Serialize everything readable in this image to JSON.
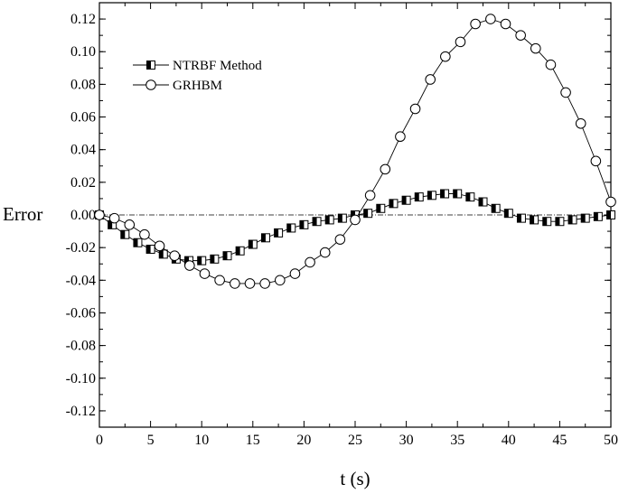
{
  "chart_data": {
    "type": "line",
    "title": "",
    "xlabel": "t (s)",
    "ylabel": "Error",
    "xlim": [
      0,
      50
    ],
    "ylim": [
      -0.13,
      0.13
    ],
    "grid": false,
    "legend_position": "top-left",
    "x_ticks": [
      0,
      5,
      10,
      15,
      20,
      25,
      30,
      35,
      40,
      45,
      50
    ],
    "x_tick_labels": [
      "0",
      "5",
      "10",
      "15",
      "20",
      "25",
      "30",
      "35",
      "40",
      "45",
      "50"
    ],
    "y_ticks": [
      0.12,
      0.1,
      0.08,
      0.06,
      0.04,
      0.02,
      0.0,
      -0.02,
      -0.04,
      -0.06,
      -0.08,
      -0.1,
      -0.12
    ],
    "y_tick_labels": [
      "0.12",
      "0.10",
      "0.08",
      "0.06",
      "0.04",
      "0.02",
      "0.00",
      "-0.02",
      "-0.04",
      "-0.06",
      "-0.08",
      "-0.10",
      "-0.12"
    ],
    "reference_line": {
      "y": 0.0,
      "style": "dash-dot"
    },
    "series": [
      {
        "name": "NTRBF Method",
        "marker": "half-filled-square",
        "color": "#000000",
        "x": [
          0,
          1.25,
          2.5,
          3.75,
          5,
          6.25,
          7.5,
          8.75,
          10,
          11.25,
          12.5,
          13.75,
          15,
          16.25,
          17.5,
          18.75,
          20,
          21.25,
          22.5,
          23.75,
          25,
          26.25,
          27.5,
          28.75,
          30,
          31.25,
          32.5,
          33.75,
          35,
          36.25,
          37.5,
          38.75,
          40,
          41.25,
          42.5,
          43.75,
          45,
          46.25,
          47.5,
          48.75,
          50
        ],
        "y": [
          0.0,
          -0.006,
          -0.012,
          -0.017,
          -0.021,
          -0.024,
          -0.027,
          -0.028,
          -0.028,
          -0.027,
          -0.025,
          -0.022,
          -0.018,
          -0.014,
          -0.011,
          -0.008,
          -0.006,
          -0.004,
          -0.003,
          -0.002,
          0.0,
          0.001,
          0.004,
          0.007,
          0.009,
          0.011,
          0.012,
          0.013,
          0.013,
          0.011,
          0.008,
          0.004,
          0.001,
          -0.002,
          -0.003,
          -0.004,
          -0.004,
          -0.003,
          -0.002,
          -0.001,
          0.0
        ]
      },
      {
        "name": "GRHBM",
        "marker": "open-circle",
        "color": "#000000",
        "x": [
          0,
          1.47,
          2.94,
          4.41,
          5.88,
          7.35,
          8.82,
          10.29,
          11.76,
          13.24,
          14.71,
          16.18,
          17.65,
          19.12,
          20.59,
          22.06,
          23.53,
          25.0,
          26.47,
          27.94,
          29.41,
          30.88,
          32.35,
          33.82,
          35.29,
          36.76,
          38.24,
          39.71,
          41.18,
          42.65,
          44.12,
          45.59,
          47.06,
          48.53,
          50
        ],
        "y": [
          0.0,
          -0.002,
          -0.006,
          -0.012,
          -0.019,
          -0.025,
          -0.031,
          -0.036,
          -0.04,
          -0.042,
          -0.042,
          -0.042,
          -0.04,
          -0.036,
          -0.029,
          -0.023,
          -0.015,
          -0.003,
          0.012,
          0.028,
          0.048,
          0.065,
          0.083,
          0.097,
          0.106,
          0.117,
          0.12,
          0.117,
          0.11,
          0.102,
          0.092,
          0.075,
          0.056,
          0.033,
          0.008
        ]
      }
    ]
  }
}
